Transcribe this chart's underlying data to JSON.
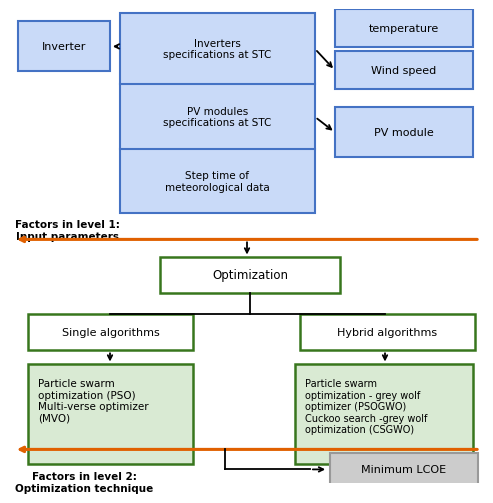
{
  "bg_color": "#ffffff",
  "blue_fill": "#c9daf8",
  "blue_border": "#4472c4",
  "green_fill_light": "#d9ead3",
  "green_border": "#38761d",
  "gray_fill": "#cccccc",
  "gray_border": "#999999",
  "orange_arrow": "#e06000",
  "level1_label": "Factors in level 1:\nInput parameters",
  "level2_label": "Factors in level 2:\nOptimization technique"
}
